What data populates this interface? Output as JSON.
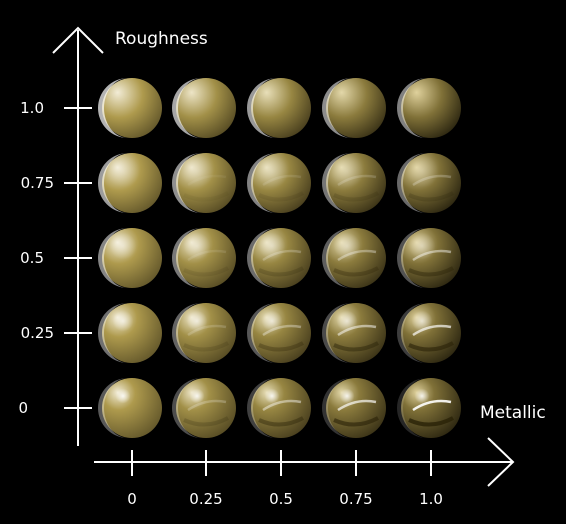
{
  "diagram": {
    "y_axis_title": "Roughness",
    "x_axis_title": "Metallic",
    "roughness_ticks": [
      "1.0",
      "0.75",
      "0.5",
      "0.25",
      "0"
    ],
    "metallic_ticks": [
      "0",
      "0.25",
      "0.5",
      "0.75",
      "1.0"
    ],
    "roughness_values": [
      1.0,
      0.75,
      0.5,
      0.25,
      0
    ],
    "metallic_values": [
      0,
      0.25,
      0.5,
      0.75,
      1.0
    ],
    "sphere_base_color": "#c9b35a",
    "background_color": "#000000",
    "axis_color": "#ffffff"
  }
}
